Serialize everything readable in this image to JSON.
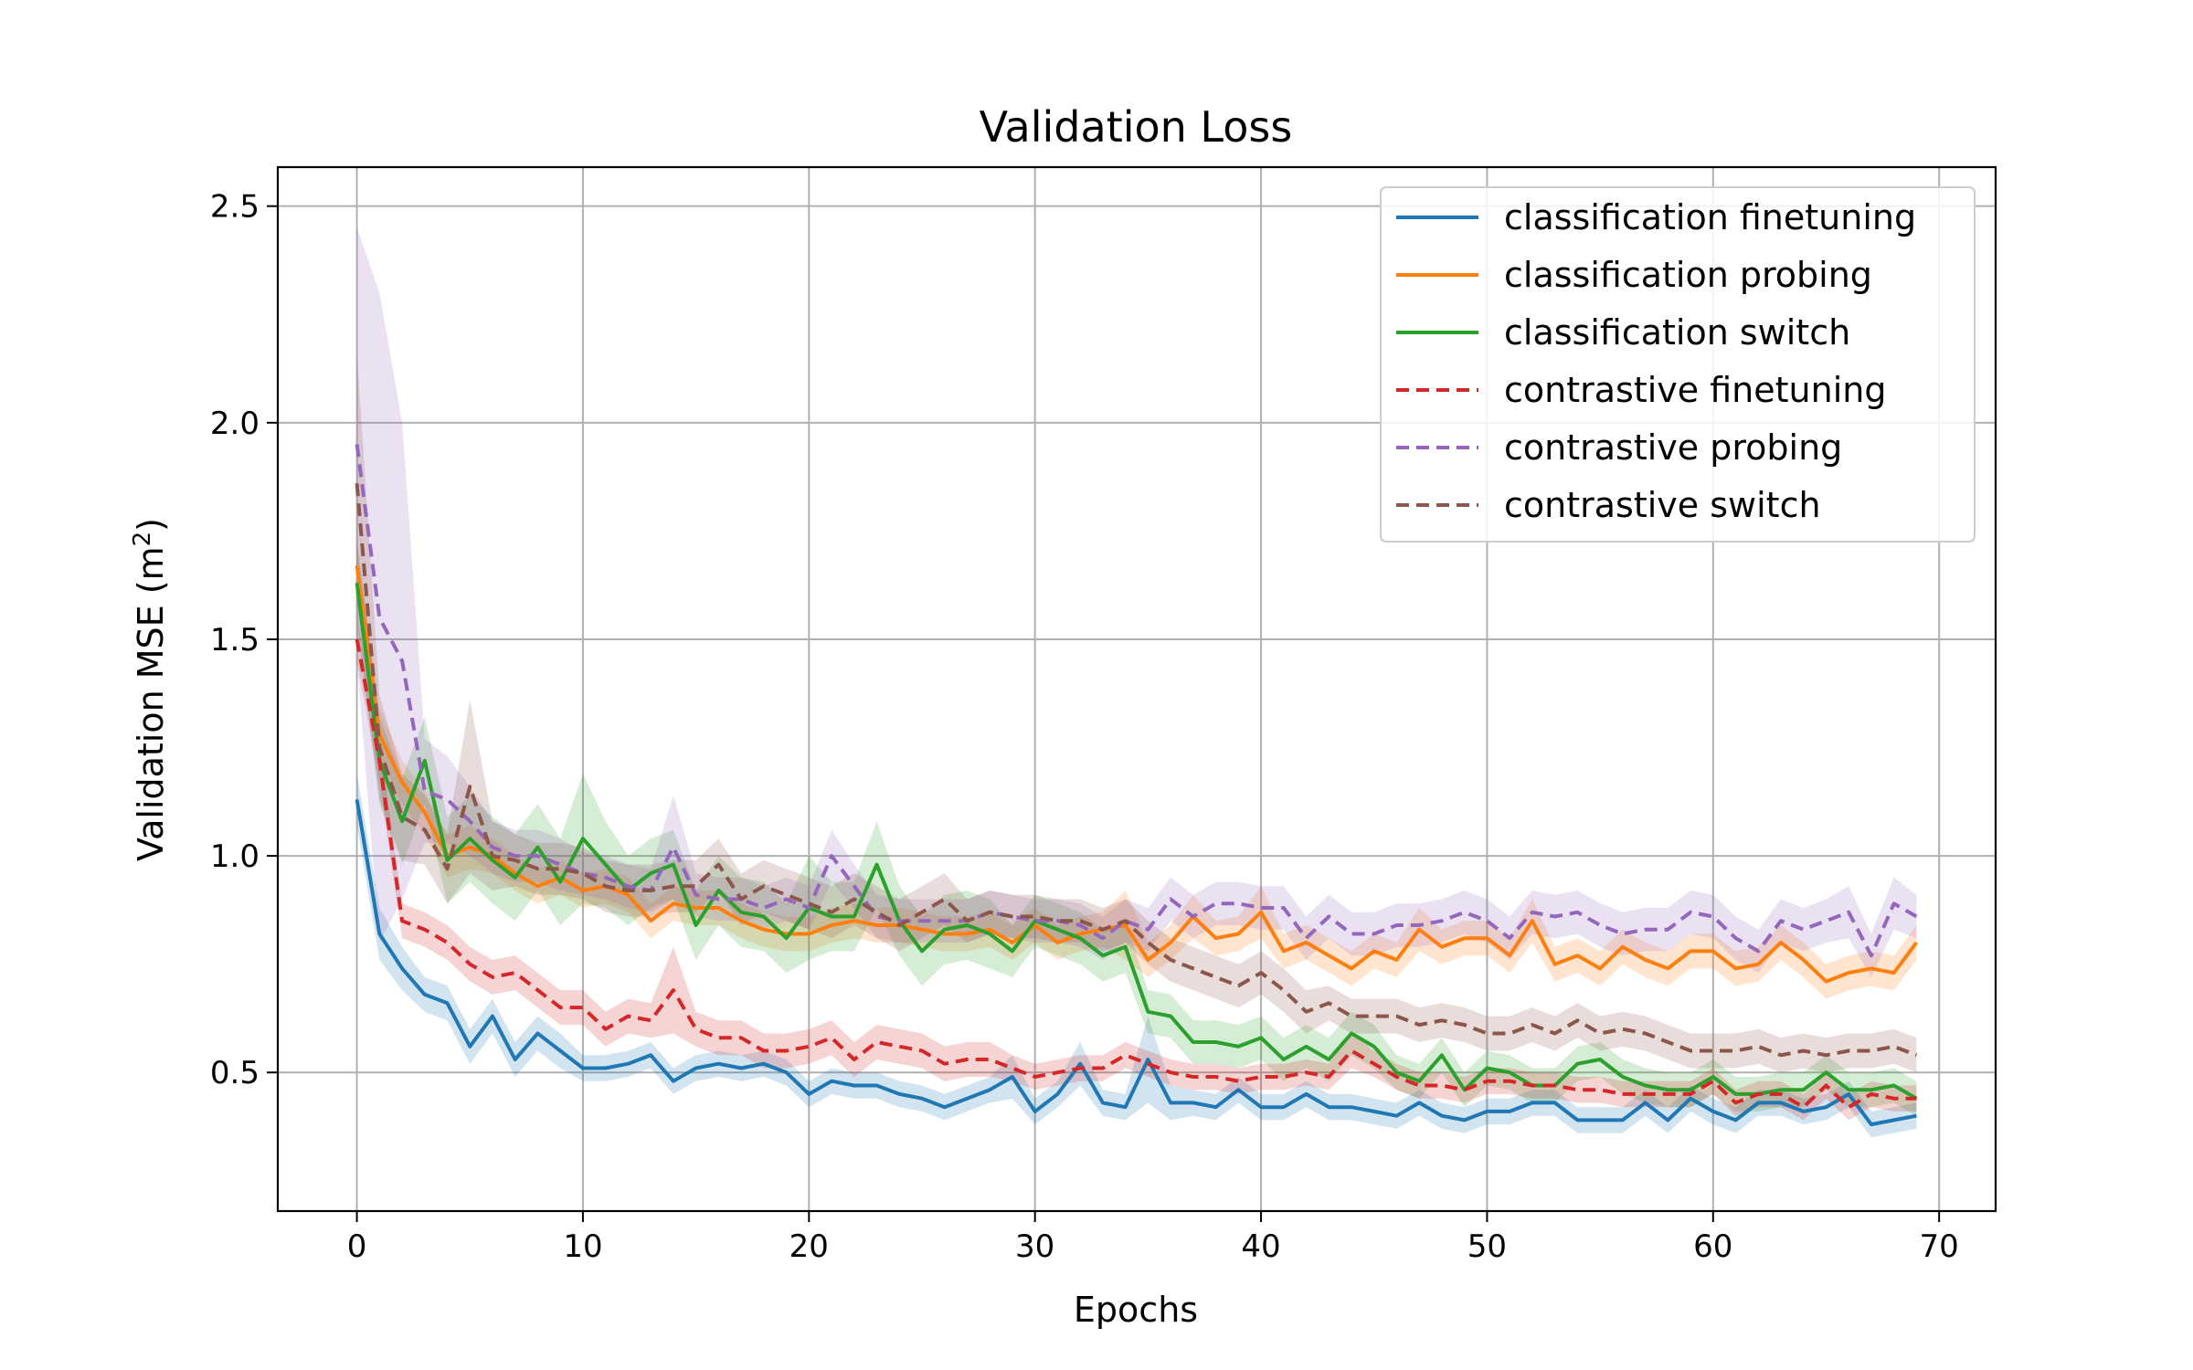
{
  "chart_data": {
    "type": "line",
    "title": "Validation Loss",
    "xlabel": "Epochs",
    "ylabel_main": "Validation MSE (m",
    "ylabel_sup": "2",
    "ylabel_tail": ")",
    "xlim": [
      -3.5,
      72.5
    ],
    "ylim": [
      0.18,
      2.59
    ],
    "xticks": [
      0,
      10,
      20,
      30,
      40,
      50,
      60,
      70
    ],
    "yticks": [
      0.5,
      1.0,
      1.5,
      2.0,
      2.5
    ],
    "xtick_labels": [
      "0",
      "10",
      "20",
      "30",
      "40",
      "50",
      "60",
      "70"
    ],
    "ytick_labels": [
      "0.5",
      "1.0",
      "1.5",
      "2.0",
      "2.5"
    ],
    "grid": true,
    "legend_position": "top-right",
    "x": [
      0,
      1,
      2,
      3,
      4,
      5,
      6,
      7,
      8,
      9,
      10,
      11,
      12,
      13,
      14,
      15,
      16,
      17,
      18,
      19,
      20,
      21,
      22,
      23,
      24,
      25,
      26,
      27,
      28,
      29,
      30,
      31,
      32,
      33,
      34,
      35,
      36,
      37,
      38,
      39,
      40,
      41,
      42,
      43,
      44,
      45,
      46,
      47,
      48,
      49,
      50,
      51,
      52,
      53,
      54,
      55,
      56,
      57,
      58,
      59,
      60,
      61,
      62,
      63,
      64,
      65,
      66,
      67,
      68,
      69
    ],
    "series": [
      {
        "name": "classification finetuning",
        "color": "#1f77b4",
        "dash": false,
        "values": [
          1.13,
          0.82,
          0.74,
          0.68,
          0.66,
          0.56,
          0.63,
          0.53,
          0.59,
          0.55,
          0.51,
          0.51,
          0.52,
          0.54,
          0.48,
          0.51,
          0.52,
          0.51,
          0.52,
          0.5,
          0.45,
          0.48,
          0.47,
          0.47,
          0.45,
          0.44,
          0.42,
          0.44,
          0.46,
          0.49,
          0.41,
          0.45,
          0.52,
          0.43,
          0.42,
          0.53,
          0.43,
          0.43,
          0.42,
          0.46,
          0.42,
          0.42,
          0.45,
          0.42,
          0.42,
          0.41,
          0.4,
          0.43,
          0.4,
          0.39,
          0.41,
          0.41,
          0.43,
          0.43,
          0.39,
          0.39,
          0.39,
          0.43,
          0.39,
          0.44,
          0.41,
          0.39,
          0.43,
          0.43,
          0.41,
          0.42,
          0.45,
          0.38,
          0.39,
          0.4
        ],
        "band": [
          0.06,
          0.06,
          0.05,
          0.04,
          0.04,
          0.04,
          0.04,
          0.04,
          0.04,
          0.04,
          0.03,
          0.03,
          0.03,
          0.03,
          0.03,
          0.03,
          0.03,
          0.03,
          0.03,
          0.03,
          0.03,
          0.03,
          0.03,
          0.03,
          0.03,
          0.03,
          0.03,
          0.03,
          0.03,
          0.05,
          0.03,
          0.03,
          0.05,
          0.03,
          0.03,
          0.1,
          0.04,
          0.03,
          0.03,
          0.03,
          0.03,
          0.03,
          0.03,
          0.03,
          0.03,
          0.03,
          0.03,
          0.03,
          0.03,
          0.03,
          0.03,
          0.03,
          0.03,
          0.03,
          0.03,
          0.03,
          0.03,
          0.03,
          0.03,
          0.03,
          0.03,
          0.03,
          0.03,
          0.03,
          0.03,
          0.03,
          0.03,
          0.03,
          0.03,
          0.03
        ]
      },
      {
        "name": "classification probing",
        "color": "#ff7f0e",
        "dash": false,
        "values": [
          1.67,
          1.28,
          1.17,
          1.1,
          1.0,
          1.02,
          1.0,
          0.96,
          0.93,
          0.95,
          0.92,
          0.93,
          0.91,
          0.85,
          0.89,
          0.88,
          0.88,
          0.85,
          0.83,
          0.82,
          0.82,
          0.84,
          0.85,
          0.84,
          0.84,
          0.83,
          0.82,
          0.82,
          0.83,
          0.8,
          0.84,
          0.8,
          0.82,
          0.83,
          0.84,
          0.76,
          0.8,
          0.86,
          0.81,
          0.82,
          0.87,
          0.78,
          0.8,
          0.77,
          0.74,
          0.78,
          0.76,
          0.83,
          0.79,
          0.81,
          0.81,
          0.77,
          0.85,
          0.75,
          0.77,
          0.74,
          0.79,
          0.76,
          0.74,
          0.78,
          0.78,
          0.74,
          0.75,
          0.8,
          0.76,
          0.71,
          0.73,
          0.74,
          0.73,
          0.8
        ],
        "band": [
          0.06,
          0.06,
          0.05,
          0.05,
          0.05,
          0.05,
          0.04,
          0.04,
          0.04,
          0.04,
          0.04,
          0.04,
          0.04,
          0.04,
          0.04,
          0.04,
          0.04,
          0.04,
          0.04,
          0.04,
          0.04,
          0.04,
          0.04,
          0.04,
          0.04,
          0.04,
          0.04,
          0.04,
          0.04,
          0.04,
          0.04,
          0.04,
          0.04,
          0.04,
          0.08,
          0.04,
          0.04,
          0.05,
          0.04,
          0.04,
          0.06,
          0.04,
          0.04,
          0.04,
          0.04,
          0.04,
          0.04,
          0.05,
          0.04,
          0.04,
          0.04,
          0.04,
          0.05,
          0.04,
          0.04,
          0.04,
          0.04,
          0.04,
          0.04,
          0.04,
          0.04,
          0.04,
          0.04,
          0.04,
          0.04,
          0.04,
          0.04,
          0.04,
          0.04,
          0.04
        ]
      },
      {
        "name": "classification switch",
        "color": "#2ca02c",
        "dash": false,
        "values": [
          1.63,
          1.22,
          1.08,
          1.22,
          0.99,
          1.04,
          0.99,
          0.95,
          1.02,
          0.94,
          1.04,
          0.98,
          0.92,
          0.96,
          0.98,
          0.84,
          0.92,
          0.87,
          0.86,
          0.81,
          0.88,
          0.86,
          0.86,
          0.98,
          0.85,
          0.78,
          0.83,
          0.84,
          0.82,
          0.78,
          0.85,
          0.83,
          0.81,
          0.77,
          0.79,
          0.64,
          0.63,
          0.57,
          0.57,
          0.56,
          0.58,
          0.53,
          0.56,
          0.53,
          0.59,
          0.56,
          0.5,
          0.48,
          0.54,
          0.46,
          0.51,
          0.5,
          0.47,
          0.47,
          0.52,
          0.53,
          0.49,
          0.47,
          0.46,
          0.46,
          0.49,
          0.45,
          0.45,
          0.46,
          0.46,
          0.5,
          0.46,
          0.46,
          0.47,
          0.44
        ],
        "band": [
          0.1,
          0.1,
          0.1,
          0.1,
          0.1,
          0.1,
          0.1,
          0.1,
          0.1,
          0.1,
          0.15,
          0.1,
          0.08,
          0.08,
          0.08,
          0.08,
          0.08,
          0.08,
          0.08,
          0.08,
          0.12,
          0.08,
          0.08,
          0.1,
          0.08,
          0.08,
          0.08,
          0.08,
          0.08,
          0.06,
          0.06,
          0.06,
          0.06,
          0.06,
          0.06,
          0.05,
          0.05,
          0.05,
          0.05,
          0.05,
          0.05,
          0.05,
          0.05,
          0.05,
          0.05,
          0.05,
          0.04,
          0.04,
          0.04,
          0.04,
          0.04,
          0.04,
          0.04,
          0.04,
          0.04,
          0.04,
          0.04,
          0.04,
          0.04,
          0.04,
          0.04,
          0.04,
          0.04,
          0.04,
          0.04,
          0.04,
          0.04,
          0.04,
          0.04,
          0.04
        ]
      },
      {
        "name": "contrastive finetuning",
        "color": "#d62728",
        "dash": true,
        "values": [
          1.5,
          1.22,
          0.85,
          0.83,
          0.8,
          0.75,
          0.72,
          0.73,
          0.69,
          0.65,
          0.65,
          0.6,
          0.63,
          0.62,
          0.69,
          0.6,
          0.58,
          0.58,
          0.55,
          0.55,
          0.56,
          0.58,
          0.53,
          0.57,
          0.56,
          0.55,
          0.52,
          0.53,
          0.53,
          0.51,
          0.49,
          0.5,
          0.51,
          0.51,
          0.54,
          0.52,
          0.5,
          0.49,
          0.49,
          0.48,
          0.49,
          0.49,
          0.5,
          0.49,
          0.55,
          0.52,
          0.49,
          0.47,
          0.47,
          0.46,
          0.48,
          0.48,
          0.47,
          0.47,
          0.46,
          0.46,
          0.45,
          0.45,
          0.45,
          0.45,
          0.48,
          0.43,
          0.45,
          0.45,
          0.42,
          0.47,
          0.42,
          0.45,
          0.44,
          0.44
        ],
        "band": [
          0.05,
          0.05,
          0.04,
          0.04,
          0.04,
          0.04,
          0.04,
          0.04,
          0.04,
          0.04,
          0.04,
          0.04,
          0.04,
          0.04,
          0.1,
          0.04,
          0.04,
          0.04,
          0.04,
          0.04,
          0.04,
          0.04,
          0.04,
          0.04,
          0.04,
          0.04,
          0.04,
          0.04,
          0.04,
          0.03,
          0.03,
          0.03,
          0.03,
          0.03,
          0.03,
          0.03,
          0.03,
          0.03,
          0.03,
          0.03,
          0.03,
          0.03,
          0.03,
          0.03,
          0.04,
          0.03,
          0.03,
          0.03,
          0.03,
          0.03,
          0.03,
          0.03,
          0.03,
          0.03,
          0.03,
          0.03,
          0.03,
          0.03,
          0.03,
          0.03,
          0.03,
          0.03,
          0.03,
          0.03,
          0.03,
          0.03,
          0.03,
          0.03,
          0.03,
          0.03
        ]
      },
      {
        "name": "contrastive probing",
        "color": "#9467bd",
        "dash": true,
        "values": [
          1.95,
          1.55,
          1.45,
          1.15,
          1.13,
          1.08,
          1.02,
          1.0,
          1.0,
          0.98,
          0.96,
          0.95,
          0.93,
          0.92,
          1.02,
          0.91,
          0.9,
          0.9,
          0.88,
          0.9,
          0.88,
          1.0,
          0.93,
          0.86,
          0.85,
          0.85,
          0.85,
          0.85,
          0.87,
          0.86,
          0.85,
          0.85,
          0.84,
          0.81,
          0.85,
          0.83,
          0.9,
          0.86,
          0.89,
          0.89,
          0.88,
          0.88,
          0.81,
          0.86,
          0.82,
          0.82,
          0.84,
          0.84,
          0.85,
          0.87,
          0.85,
          0.81,
          0.87,
          0.86,
          0.87,
          0.84,
          0.82,
          0.83,
          0.83,
          0.87,
          0.86,
          0.81,
          0.78,
          0.85,
          0.83,
          0.85,
          0.87,
          0.77,
          0.89,
          0.86
        ],
        "band": [
          0.5,
          0.75,
          0.55,
          0.12,
          0.1,
          0.08,
          0.06,
          0.06,
          0.06,
          0.06,
          0.05,
          0.05,
          0.05,
          0.05,
          0.12,
          0.05,
          0.05,
          0.05,
          0.05,
          0.05,
          0.05,
          0.06,
          0.05,
          0.05,
          0.05,
          0.05,
          0.05,
          0.05,
          0.05,
          0.05,
          0.05,
          0.05,
          0.05,
          0.05,
          0.05,
          0.05,
          0.05,
          0.05,
          0.05,
          0.05,
          0.05,
          0.05,
          0.05,
          0.05,
          0.05,
          0.05,
          0.05,
          0.05,
          0.05,
          0.05,
          0.05,
          0.05,
          0.05,
          0.05,
          0.05,
          0.05,
          0.05,
          0.05,
          0.05,
          0.05,
          0.05,
          0.05,
          0.05,
          0.05,
          0.05,
          0.05,
          0.06,
          0.05,
          0.06,
          0.05
        ]
      },
      {
        "name": "contrastive switch",
        "color": "#8c564b",
        "dash": true,
        "values": [
          1.86,
          1.25,
          1.09,
          1.06,
          0.97,
          1.16,
          1.0,
          0.99,
          0.97,
          0.97,
          0.96,
          0.93,
          0.92,
          0.92,
          0.93,
          0.93,
          0.98,
          0.9,
          0.93,
          0.91,
          0.89,
          0.87,
          0.9,
          0.87,
          0.84,
          0.87,
          0.9,
          0.85,
          0.87,
          0.86,
          0.86,
          0.85,
          0.85,
          0.83,
          0.85,
          0.8,
          0.76,
          0.74,
          0.72,
          0.7,
          0.73,
          0.69,
          0.64,
          0.66,
          0.63,
          0.63,
          0.63,
          0.61,
          0.62,
          0.61,
          0.59,
          0.59,
          0.61,
          0.59,
          0.62,
          0.59,
          0.6,
          0.59,
          0.57,
          0.55,
          0.55,
          0.55,
          0.56,
          0.54,
          0.55,
          0.54,
          0.55,
          0.55,
          0.56,
          0.54
        ],
        "band": [
          0.3,
          0.12,
          0.1,
          0.08,
          0.08,
          0.2,
          0.08,
          0.06,
          0.06,
          0.06,
          0.06,
          0.06,
          0.06,
          0.06,
          0.06,
          0.06,
          0.06,
          0.06,
          0.06,
          0.06,
          0.06,
          0.06,
          0.06,
          0.06,
          0.06,
          0.06,
          0.06,
          0.05,
          0.05,
          0.05,
          0.05,
          0.05,
          0.05,
          0.05,
          0.05,
          0.05,
          0.05,
          0.05,
          0.05,
          0.05,
          0.05,
          0.05,
          0.05,
          0.04,
          0.04,
          0.04,
          0.04,
          0.04,
          0.04,
          0.04,
          0.04,
          0.04,
          0.04,
          0.04,
          0.04,
          0.04,
          0.04,
          0.04,
          0.04,
          0.04,
          0.04,
          0.04,
          0.04,
          0.04,
          0.04,
          0.04,
          0.04,
          0.04,
          0.04,
          0.04
        ]
      }
    ]
  }
}
